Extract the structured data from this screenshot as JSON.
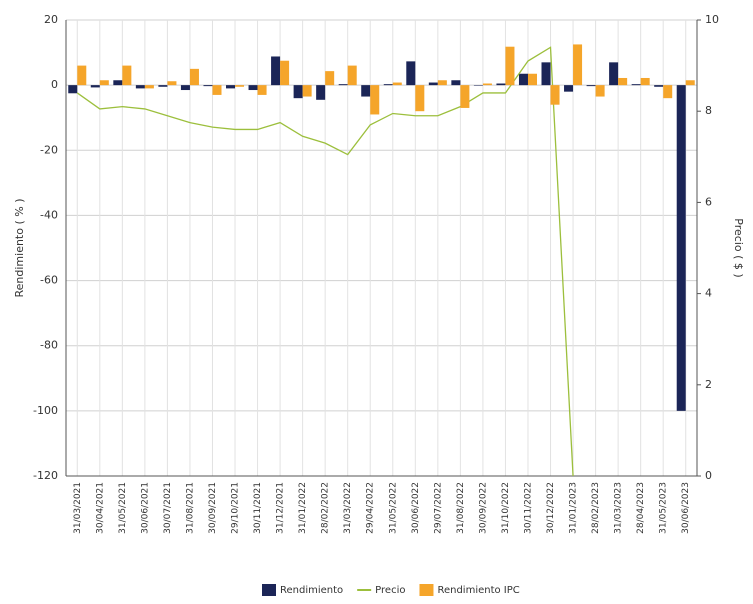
{
  "chart_data": {
    "type": "bar",
    "categories": [
      "31/03/2021",
      "30/04/2021",
      "31/05/2021",
      "30/06/2021",
      "30/07/2021",
      "31/08/2021",
      "30/09/2021",
      "29/10/2021",
      "30/11/2021",
      "31/12/2021",
      "31/01/2022",
      "28/02/2022",
      "31/03/2022",
      "29/04/2022",
      "31/05/2022",
      "30/06/2022",
      "29/07/2022",
      "31/08/2022",
      "30/09/2022",
      "31/10/2022",
      "30/11/2022",
      "30/12/2022",
      "31/01/2023",
      "28/02/2023",
      "31/03/2023",
      "28/04/2023",
      "31/05/2023",
      "30/06/2023"
    ],
    "series": [
      {
        "name": "Rendimiento",
        "type": "bar",
        "color": "#1b2557",
        "values": [
          -2.5,
          -0.7,
          1.5,
          -1,
          -0.5,
          -1.5,
          -0.3,
          -1,
          -1.5,
          8.8,
          -4,
          -4.5,
          0.3,
          -3.5,
          0.3,
          7.3,
          0.8,
          1.5,
          0,
          0.5,
          3.5,
          7,
          -2,
          -0.3,
          7,
          0.3,
          -0.5,
          -100
        ]
      },
      {
        "name": "Precio",
        "type": "line",
        "axis": "y2",
        "color": "#9cbf3c",
        "values": [
          8.4,
          8.05,
          8.1,
          8.05,
          7.9,
          7.75,
          7.65,
          7.6,
          7.6,
          7.75,
          7.45,
          7.3,
          7.05,
          7.7,
          7.95,
          7.9,
          7.9,
          8.1,
          8.4,
          8.4,
          9.1,
          9.4,
          0,
          null,
          null,
          null,
          null,
          null
        ]
      },
      {
        "name": "Rendimiento IPC",
        "type": "bar",
        "color": "#f5a52a",
        "values": [
          6,
          1.5,
          6,
          -1,
          1.2,
          5,
          -3,
          -0.5,
          -3,
          7.5,
          -3.5,
          4.3,
          6,
          -9,
          0.8,
          -8,
          1.5,
          -7,
          0.5,
          11.8,
          3.5,
          -6,
          12.5,
          -3.5,
          2.2,
          2.2,
          -4,
          1.5
        ]
      }
    ],
    "ylabel": "Rendimiento ( % )",
    "y2label": "Precio ( $ )",
    "ylim": [
      -120,
      20
    ],
    "yticks": [
      -120,
      -100,
      -80,
      -60,
      -40,
      -20,
      0,
      20
    ],
    "y2lim": [
      0,
      10
    ],
    "y2ticks": [
      0,
      2,
      4,
      6,
      8,
      10
    ],
    "grid": true,
    "legend": "bottom"
  }
}
